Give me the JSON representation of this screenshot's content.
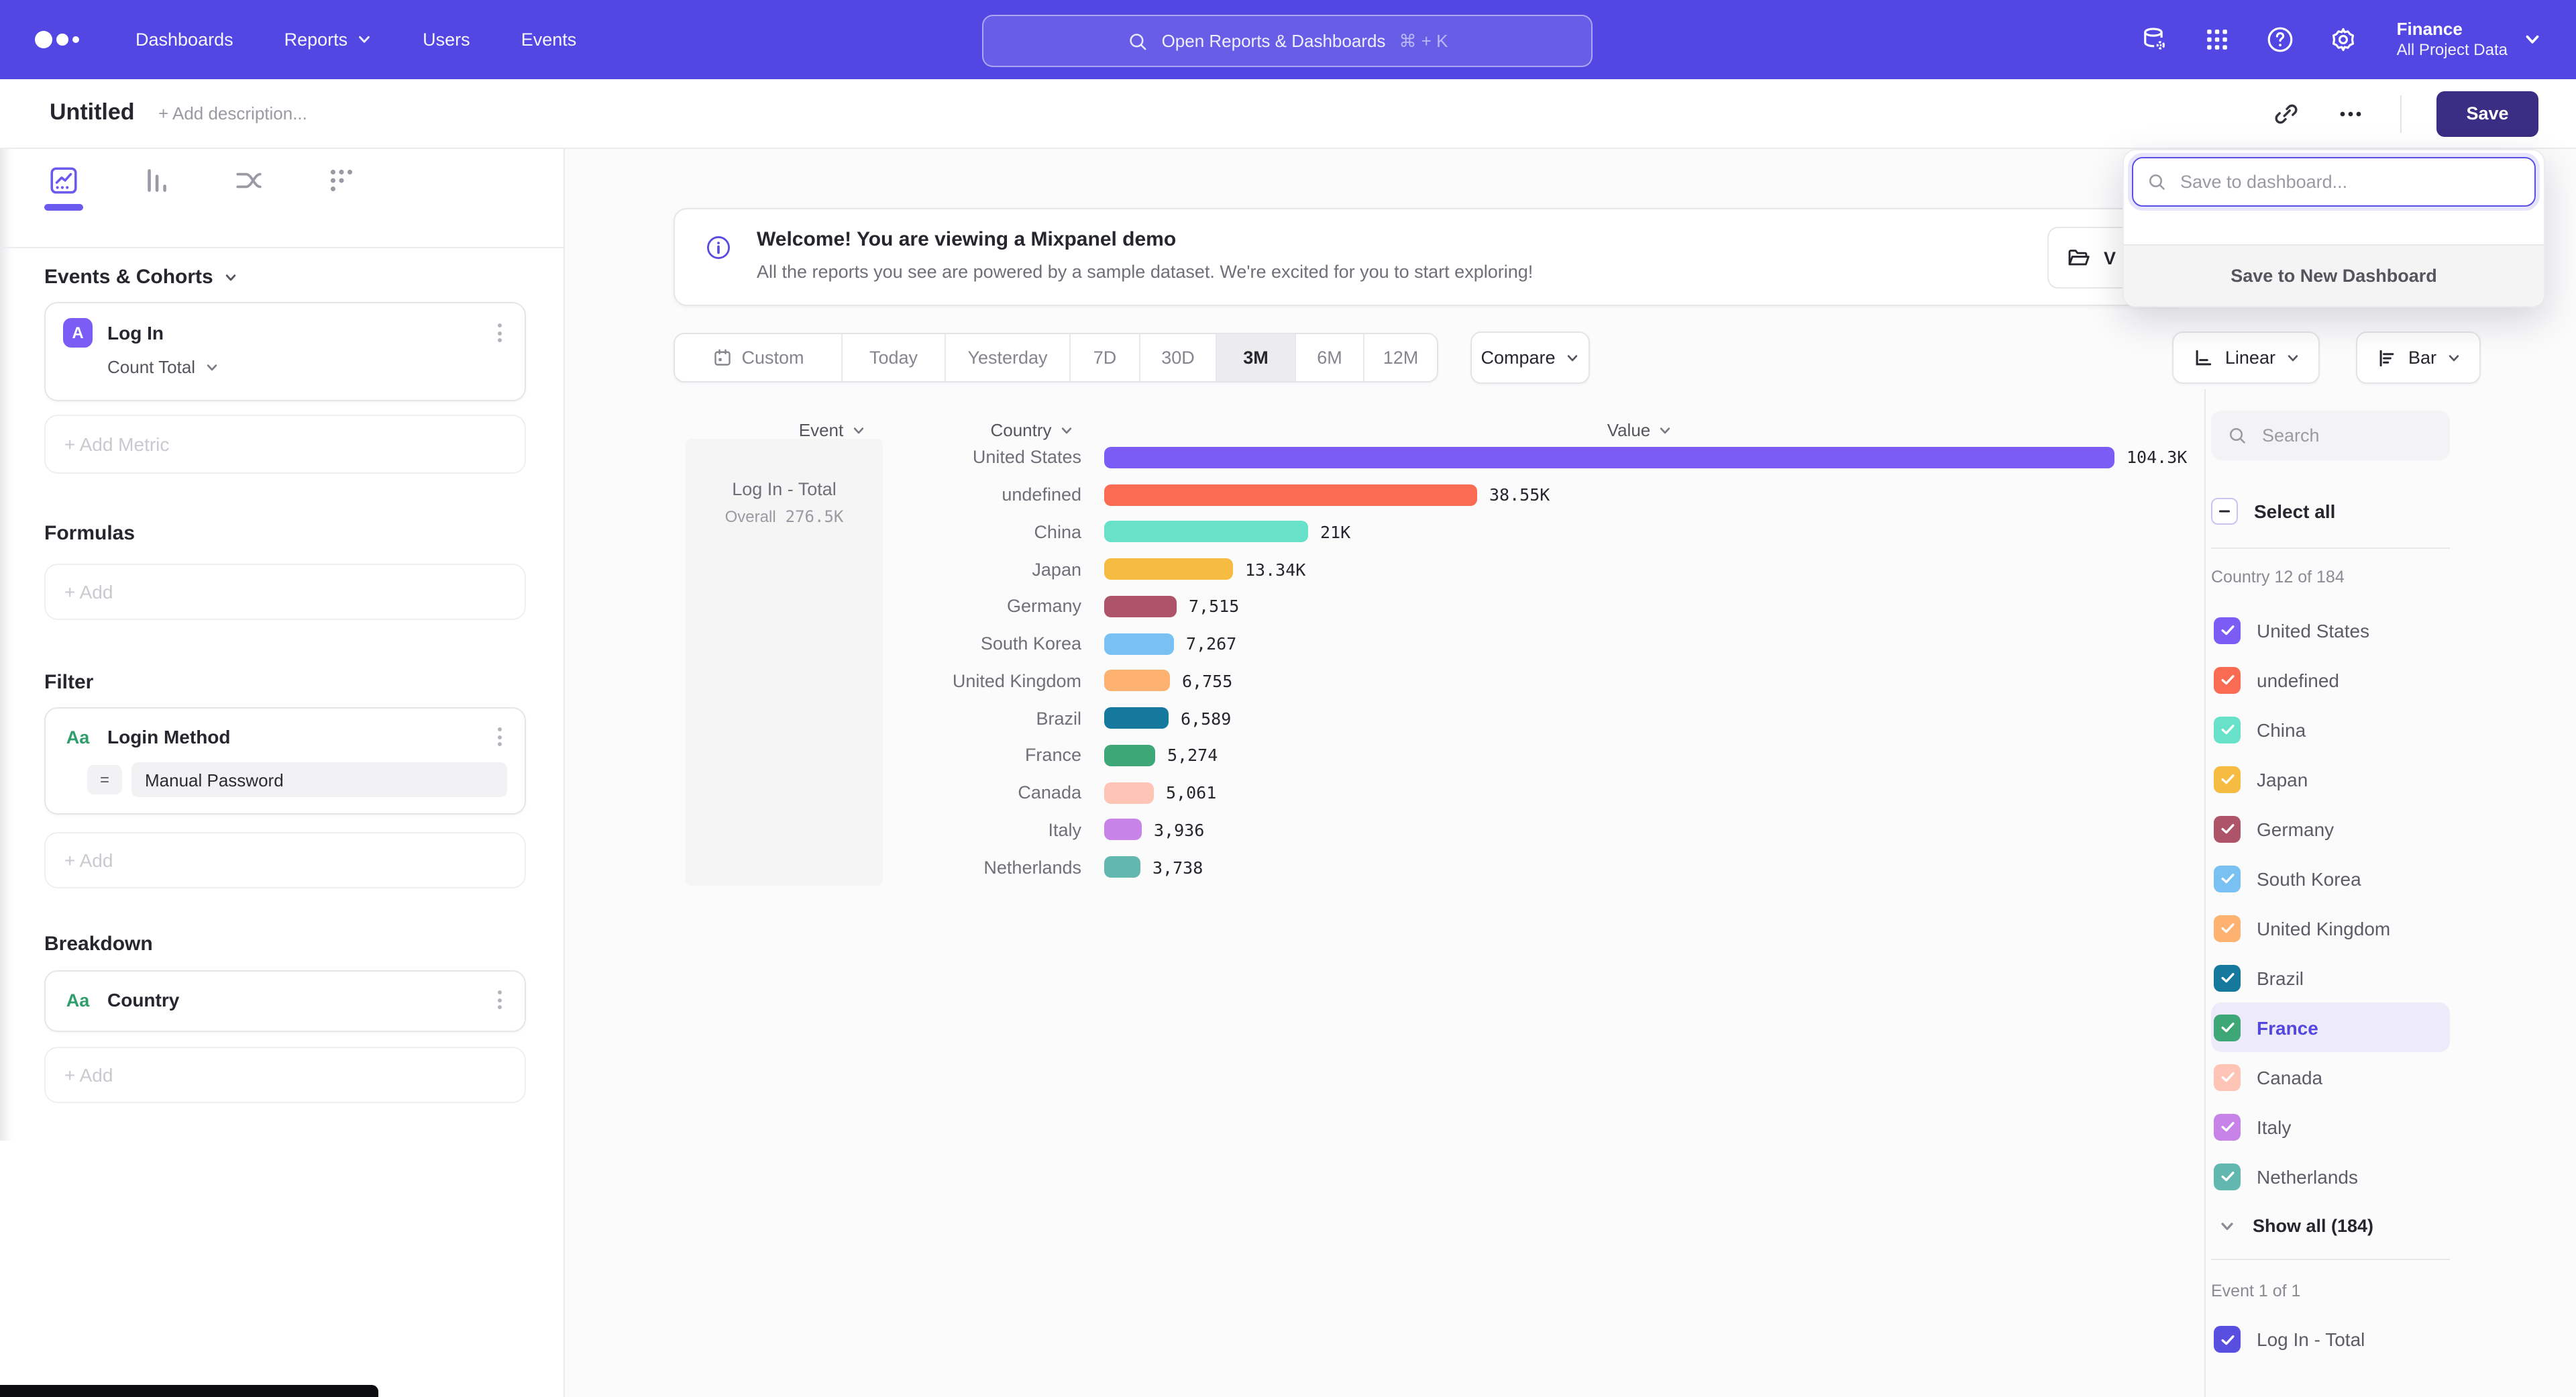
{
  "topnav": {
    "items": [
      "Dashboards",
      "Reports",
      "Users",
      "Events"
    ],
    "search": {
      "placeholder": "Open Reports & Dashboards",
      "shortcut": "⌘ + K"
    },
    "project": {
      "name": "Finance",
      "scope": "All Project Data"
    }
  },
  "header": {
    "title": "Untitled",
    "description_placeholder": "+ Add description...",
    "save": "Save"
  },
  "save_popup": {
    "placeholder": "Save to dashboard...",
    "new_dashboard": "Save to New Dashboard"
  },
  "banner": {
    "title": "Welcome! You are viewing a Mixpanel demo",
    "subtitle": "All the reports you see are powered by a sample dataset. We're excited for you to start exploring!",
    "action_visible_text": "V"
  },
  "sidebar": {
    "events_heading": "Events & Cohorts",
    "metric": {
      "badge": "A",
      "name": "Log In",
      "aggregation": "Count Total"
    },
    "add_metric": "+ Add Metric",
    "formulas_heading": "Formulas",
    "formulas_add": "+ Add",
    "filter_heading": "Filter",
    "filter": {
      "badge": "Aa",
      "name": "Login Method",
      "operator": "=",
      "value": "Manual Password"
    },
    "filter_add": "+ Add",
    "breakdown_heading": "Breakdown",
    "breakdown": {
      "badge": "Aa",
      "name": "Country"
    },
    "breakdown_add": "+ Add"
  },
  "controls": {
    "ranges": [
      "Custom",
      "Today",
      "Yesterday",
      "7D",
      "30D",
      "3M",
      "6M",
      "12M"
    ],
    "active_range": "3M",
    "compare": "Compare",
    "line_mode": "Linear",
    "chart_type": "Bar"
  },
  "chart_data": {
    "type": "bar",
    "orientation": "horizontal",
    "columns": {
      "event": "Event",
      "country": "Country",
      "value": "Value"
    },
    "event": {
      "name": "Log In - Total",
      "overall_label": "Overall",
      "overall_value": "276.5K"
    },
    "categories": [
      "United States",
      "undefined",
      "China",
      "Japan",
      "Germany",
      "South Korea",
      "United Kingdom",
      "Brazil",
      "France",
      "Canada",
      "Italy",
      "Netherlands"
    ],
    "values": [
      104300,
      38550,
      21000,
      13340,
      7515,
      7267,
      6755,
      6589,
      5274,
      5061,
      3936,
      3738
    ],
    "value_labels": [
      "104.3K",
      "38.55K",
      "21K",
      "13.34K",
      "7,515",
      "7,267",
      "6,755",
      "6,589",
      "5,274",
      "5,061",
      "3,936",
      "3,738"
    ],
    "colors": [
      "#7b5cf5",
      "#f96b52",
      "#67e1c8",
      "#f6bc41",
      "#ae5468",
      "#79c1f3",
      "#fdb271",
      "#15799e",
      "#3da777",
      "#fec5b6",
      "#c783e8",
      "#62b7ae"
    ],
    "xlim": [
      0,
      110000
    ]
  },
  "panel": {
    "search_placeholder": "Search",
    "select_all": "Select all",
    "group_label": "Country 12 of 184",
    "countries": [
      {
        "label": "United States",
        "color": "#7b5cf5",
        "checked": true
      },
      {
        "label": "undefined",
        "color": "#f96b52",
        "checked": true
      },
      {
        "label": "China",
        "color": "#67e1c8",
        "checked": true
      },
      {
        "label": "Japan",
        "color": "#f6bc41",
        "checked": true
      },
      {
        "label": "Germany",
        "color": "#ae5468",
        "checked": true
      },
      {
        "label": "South Korea",
        "color": "#79c1f3",
        "checked": true
      },
      {
        "label": "United Kingdom",
        "color": "#fdb271",
        "checked": true
      },
      {
        "label": "Brazil",
        "color": "#15799e",
        "checked": true
      },
      {
        "label": "France",
        "color": "#3da777",
        "checked": true,
        "highlighted": true
      },
      {
        "label": "Canada",
        "color": "#fec5b6",
        "checked": true
      },
      {
        "label": "Italy",
        "color": "#c783e8",
        "checked": true
      },
      {
        "label": "Netherlands",
        "color": "#62b7ae",
        "checked": true
      }
    ],
    "show_all": "Show all (184)",
    "event_group_label": "Event 1 of 1",
    "event_item": {
      "label": "Log In - Total",
      "color": "#584fe0",
      "checked": true
    }
  },
  "colors": {
    "accent": "#5347e4",
    "save_button": "#3a2d84",
    "focus": "#5a4fe8",
    "active_tab": "#6a5af0"
  }
}
